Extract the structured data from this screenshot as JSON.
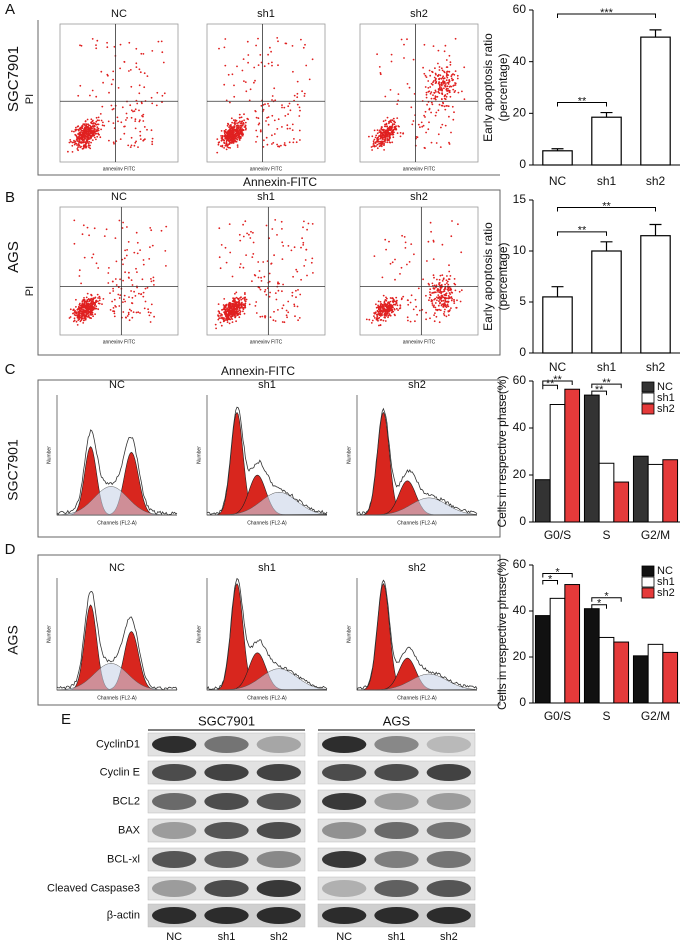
{
  "chart_data": [
    {
      "type": "bar",
      "categories": [
        "NC",
        "sh1",
        "sh2"
      ],
      "values": [
        5.5,
        18.5,
        49.5
      ],
      "errors": [
        0.8,
        1.8,
        2.8
      ],
      "color": "#ffffff",
      "ylim": [
        0,
        60
      ],
      "yticks": [
        0,
        20,
        40,
        60
      ],
      "ylabel": [
        "Early apoptosis ratio",
        "(percentage)"
      ],
      "annotations": [
        "**",
        "***"
      ]
    },
    {
      "type": "bar",
      "categories": [
        "NC",
        "sh1",
        "sh2"
      ],
      "values": [
        5.5,
        10,
        11.5
      ],
      "errors": [
        1,
        0.9,
        1.1
      ],
      "color": "#ffffff",
      "ylim": [
        0,
        15
      ],
      "yticks": [
        0,
        5,
        10,
        15
      ],
      "ylabel": [
        "Early apoptosis ratio",
        "(percentage)"
      ],
      "annotations": [
        "**",
        "**"
      ]
    },
    {
      "type": "grouped_bar",
      "categories": [
        "G0/S",
        "S",
        "G2/M"
      ],
      "series": [
        {
          "name": "NC",
          "color": "#333333",
          "values": [
            18,
            54,
            28
          ]
        },
        {
          "name": "sh1",
          "color": "#ffffff",
          "values": [
            50,
            25,
            24.5
          ]
        },
        {
          "name": "sh2",
          "color": "#e53a3a",
          "values": [
            56.5,
            17,
            26.5
          ]
        }
      ],
      "ylim": [
        0,
        60
      ],
      "yticks": [
        0,
        20,
        40,
        60
      ],
      "ylabel": "Cells in respective phase(%)",
      "annotations": [
        "**",
        "**",
        "**",
        "**"
      ]
    },
    {
      "type": "grouped_bar",
      "categories": [
        "G0/S",
        "S",
        "G2/M"
      ],
      "series": [
        {
          "name": "NC",
          "color": "#111111",
          "values": [
            38,
            41,
            20.5
          ]
        },
        {
          "name": "sh1",
          "color": "#ffffff",
          "values": [
            45.5,
            28.5,
            25.5
          ]
        },
        {
          "name": "sh2",
          "color": "#e53a3a",
          "values": [
            51.5,
            26.5,
            22
          ]
        }
      ],
      "ylim": [
        0,
        60
      ],
      "yticks": [
        0,
        20,
        40,
        60
      ],
      "ylabel": "Cells in respective phase(%)",
      "annotations": [
        "*",
        "*",
        "*",
        "*"
      ]
    }
  ],
  "panel_labels": [
    "A",
    "B",
    "C",
    "D",
    "E"
  ],
  "flow": {
    "cell_lines": [
      "SGC7901",
      "AGS"
    ],
    "y_label": "PI",
    "x_label": "Annexin-FITC",
    "groups": [
      "NC",
      "sh1",
      "sh2"
    ],
    "plot_x_label": "annexinv FITC"
  },
  "cycle": {
    "cell_lines": [
      "SGC7901",
      "AGS"
    ],
    "groups": [
      "NC",
      "sh1",
      "sh2"
    ],
    "plot_y_label": "Number",
    "plot_x_label": "Channels (FL2-A)"
  },
  "western": {
    "cell_lines": [
      "SGC7901",
      "AGS"
    ],
    "proteins": [
      "CyclinD1",
      "Cyclin E",
      "BCL2",
      "BAX",
      "BCL-xl",
      "Cleaved Caspase3",
      "β-actin"
    ],
    "lanes": [
      "NC",
      "sh1",
      "sh2",
      "NC",
      "sh1",
      "sh2"
    ]
  }
}
